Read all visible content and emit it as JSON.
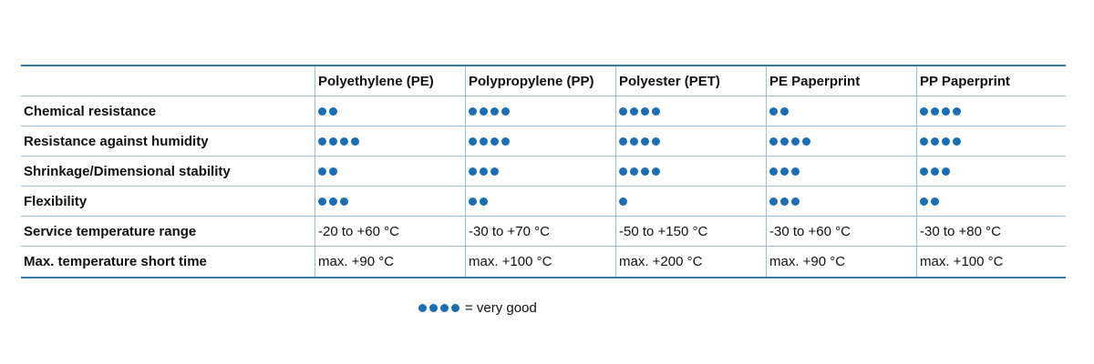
{
  "colors": {
    "accent": "#1b6eb5",
    "rule": "#3a7aa8",
    "grid": "#9fbfd6"
  },
  "table": {
    "columns": [
      "Polyethylene (PE)",
      "Polypropylene (PP)",
      "Polyester (PET)",
      "PE Paperprint",
      "PP Paperprint"
    ],
    "rows": [
      {
        "label": "Chemical resistance",
        "type": "rating",
        "values": [
          2,
          4,
          4,
          2,
          4
        ]
      },
      {
        "label": "Resistance against humidity",
        "type": "rating",
        "values": [
          4,
          4,
          4,
          4,
          4
        ]
      },
      {
        "label": "Shrinkage/Dimensional stability",
        "type": "rating",
        "values": [
          2,
          3,
          4,
          3,
          3
        ]
      },
      {
        "label": "Flexibility",
        "type": "rating",
        "values": [
          3,
          2,
          1,
          3,
          2
        ]
      },
      {
        "label": "Service temperature range",
        "type": "text",
        "values": [
          "-20 to +60 °C",
          "-30 to +70 °C",
          "-50 to +150 °C",
          "-30 to +60 °C",
          "-30 to +80 °C"
        ]
      },
      {
        "label": "Max. temperature short time",
        "type": "text",
        "values": [
          "max. +90 °C",
          "max. +100 °C",
          "max. +200 °C",
          "max. +90 °C",
          "max. +100 °C"
        ]
      }
    ]
  },
  "legend": {
    "rating": 4,
    "text": "= very good"
  }
}
